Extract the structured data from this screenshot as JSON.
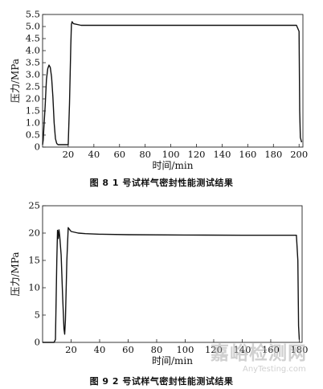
{
  "chart_data": [
    {
      "type": "line",
      "caption": "图 8   1 号试样气密封性能测试结果",
      "xlabel": "时间/min",
      "ylabel": "压力/MPa",
      "xlim": [
        0,
        203
      ],
      "ylim": [
        0,
        5.5
      ],
      "x_ticks": [
        20,
        40,
        60,
        80,
        100,
        120,
        140,
        160,
        180,
        200
      ],
      "y_ticks": [
        0,
        0.5,
        1.0,
        1.5,
        2.0,
        2.5,
        3.0,
        3.5,
        4.0,
        4.5,
        5.0,
        5.5
      ],
      "y_tick_labels": [
        "0",
        "0.5",
        "1.0",
        "1.5",
        "2.0",
        "2.5",
        "3.0",
        "3.5",
        "4.0",
        "4.5",
        "5.0",
        "5.5"
      ],
      "series": [
        {
          "x": [
            0,
            0.5,
            1,
            2,
            3,
            4,
            5,
            6,
            7,
            8,
            9,
            10,
            11,
            12,
            14,
            16,
            18,
            20,
            21,
            22,
            22.5,
            23,
            24,
            30,
            60,
            100,
            150,
            198,
            200,
            200.5,
            201,
            202
          ],
          "y": [
            0.1,
            0.3,
            0.8,
            1.7,
            2.8,
            3.25,
            3.4,
            3.3,
            2.9,
            2.1,
            1.0,
            0.35,
            0.15,
            0.1,
            0.1,
            0.1,
            0.1,
            0.1,
            1.8,
            4.2,
            5.1,
            5.2,
            5.12,
            5.05,
            5.05,
            5.05,
            5.05,
            5.05,
            4.8,
            1.5,
            0.4,
            0.2
          ]
        }
      ]
    },
    {
      "type": "line",
      "caption": "图 9   2 号试样气密封性能测试结果",
      "xlabel": "时间/min",
      "ylabel": "压力/MPa",
      "xlim": [
        0,
        182
      ],
      "ylim": [
        0,
        25
      ],
      "x_ticks": [
        20,
        40,
        60,
        80,
        100,
        120,
        140,
        160,
        180
      ],
      "y_ticks": [
        0,
        5,
        10,
        15,
        20,
        25
      ],
      "y_tick_labels": [
        "0",
        "5",
        "10",
        "15",
        "20",
        "25"
      ],
      "series": [
        {
          "x": [
            0,
            8,
            9,
            10,
            10.5,
            11,
            11.5,
            12,
            13,
            14,
            15,
            15.5,
            16,
            17,
            18,
            18.5,
            20,
            25,
            30,
            40,
            60,
            100,
            140,
            178,
            179,
            179.5,
            180
          ],
          "y": [
            0,
            0,
            0.5,
            15,
            20.5,
            19,
            20.6,
            19.5,
            16,
            9,
            2.5,
            1.5,
            4,
            15,
            21,
            20.8,
            20.3,
            20.0,
            19.9,
            19.8,
            19.7,
            19.65,
            19.6,
            19.6,
            15,
            3,
            0.5
          ]
        }
      ]
    }
  ],
  "watermark": {
    "main": "嘉峪检测网",
    "sub": "AnyTesting.com"
  }
}
